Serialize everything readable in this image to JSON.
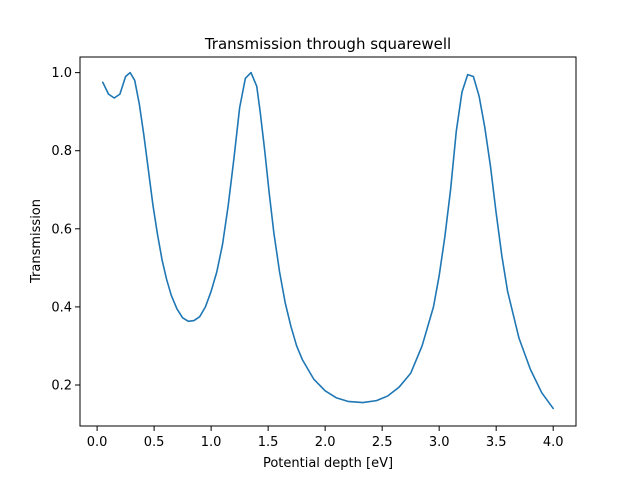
{
  "chart_data": {
    "type": "line",
    "title": "Transmission through squarewell",
    "xlabel": "Potential depth [eV]",
    "ylabel": "Transmission",
    "xlim": [
      -0.15,
      4.2
    ],
    "ylim": [
      0.095,
      1.04
    ],
    "grid": false,
    "xticks": [
      "0.0",
      "0.5",
      "1.0",
      "1.5",
      "2.0",
      "2.5",
      "3.0",
      "3.5",
      "4.0"
    ],
    "yticks": [
      "0.2",
      "0.4",
      "0.6",
      "0.8",
      "1.0"
    ],
    "series": [
      {
        "color": "#1f77b4",
        "x": [
          0.05,
          0.1,
          0.15,
          0.2,
          0.25,
          0.29,
          0.33,
          0.37,
          0.41,
          0.45,
          0.49,
          0.53,
          0.57,
          0.61,
          0.65,
          0.7,
          0.75,
          0.8,
          0.85,
          0.9,
          0.95,
          1.0,
          1.05,
          1.1,
          1.15,
          1.2,
          1.25,
          1.3,
          1.35,
          1.4,
          1.43,
          1.47,
          1.51,
          1.55,
          1.6,
          1.65,
          1.7,
          1.75,
          1.8,
          1.9,
          2.0,
          2.1,
          2.2,
          2.33,
          2.45,
          2.55,
          2.65,
          2.75,
          2.85,
          2.95,
          3.0,
          3.05,
          3.1,
          3.15,
          3.2,
          3.25,
          3.3,
          3.35,
          3.4,
          3.45,
          3.5,
          3.55,
          3.6,
          3.7,
          3.8,
          3.9,
          4.0
        ],
        "y": [
          0.975,
          0.945,
          0.935,
          0.945,
          0.99,
          1.0,
          0.98,
          0.92,
          0.84,
          0.75,
          0.66,
          0.585,
          0.52,
          0.47,
          0.43,
          0.395,
          0.372,
          0.363,
          0.365,
          0.375,
          0.4,
          0.44,
          0.49,
          0.56,
          0.66,
          0.78,
          0.91,
          0.985,
          1.0,
          0.965,
          0.9,
          0.8,
          0.69,
          0.59,
          0.49,
          0.41,
          0.35,
          0.3,
          0.265,
          0.215,
          0.185,
          0.167,
          0.158,
          0.155,
          0.16,
          0.172,
          0.195,
          0.23,
          0.3,
          0.4,
          0.48,
          0.58,
          0.7,
          0.85,
          0.95,
          0.995,
          0.99,
          0.94,
          0.86,
          0.76,
          0.64,
          0.53,
          0.44,
          0.32,
          0.24,
          0.18,
          0.14
        ]
      }
    ]
  }
}
